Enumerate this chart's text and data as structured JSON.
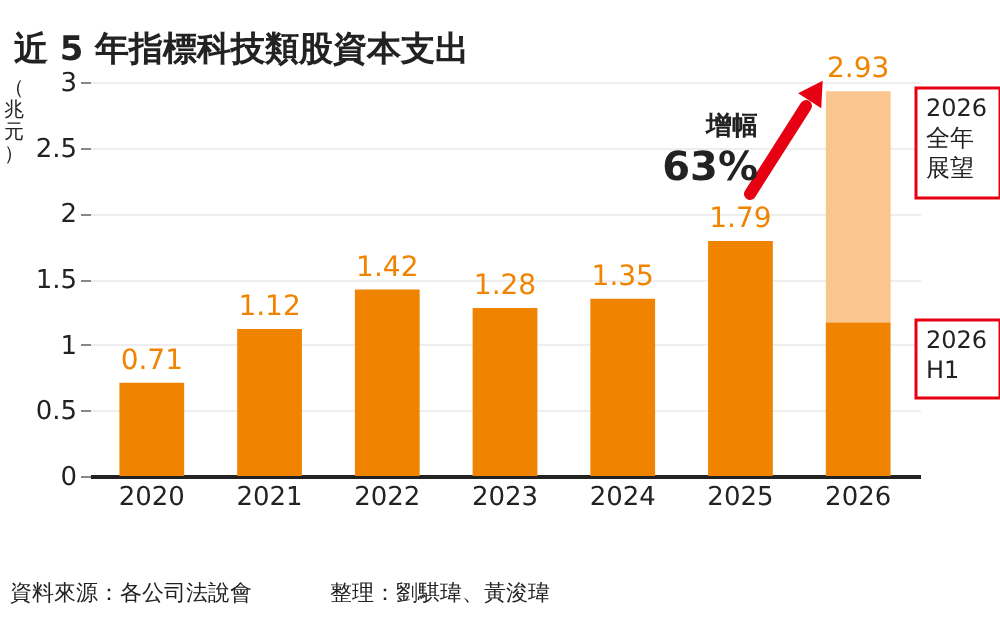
{
  "chart_data": {
    "type": "bar",
    "title": "近 5 年指標科技類股資本支出",
    "ylabel": "（兆元）",
    "categories": [
      "2020",
      "2021",
      "2022",
      "2023",
      "2024",
      "2025",
      "2026"
    ],
    "stacked": true,
    "series": [
      {
        "color": "#f08300",
        "values": [
          0.71,
          1.12,
          1.42,
          1.28,
          1.35,
          1.79,
          1.17
        ]
      },
      {
        "color": "#fbc590",
        "values": [
          null,
          null,
          null,
          null,
          null,
          null,
          1.76
        ]
      }
    ],
    "totals": [
      "0.71",
      "1.12",
      "1.42",
      "1.28",
      "1.35",
      "1.79",
      "2.93"
    ],
    "ylim": [
      0,
      3
    ],
    "yticks": [
      0,
      0.5,
      1,
      1.5,
      2,
      2.5,
      3
    ],
    "grid": "y",
    "annotations": [
      "增幅",
      "63%",
      "2026全年展望",
      "2026H1",
      "資料來源：各公司法說會",
      "整理：劉騏瑋、黃浚瑋"
    ]
  }
}
